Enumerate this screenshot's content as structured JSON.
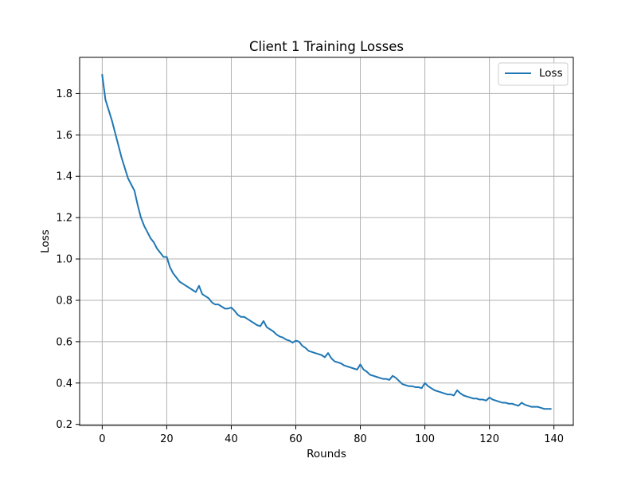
{
  "chart_data": {
    "type": "line",
    "title": "Client 1 Training Losses",
    "xlabel": "Rounds",
    "ylabel": "Loss",
    "xlim": [
      -7,
      146
    ],
    "ylim": [
      0.195,
      1.975
    ],
    "xticks": [
      0,
      20,
      40,
      60,
      80,
      100,
      120,
      140
    ],
    "yticks": [
      0.2,
      0.4,
      0.6,
      0.8,
      1.0,
      1.2,
      1.4,
      1.6,
      1.8
    ],
    "ytick_labels": [
      "0.2",
      "0.4",
      "0.6",
      "0.8",
      "1.0",
      "1.2",
      "1.4",
      "1.6",
      "1.8"
    ],
    "grid": true,
    "legend_position": "top-right",
    "series": [
      {
        "name": "Loss",
        "color": "#1f77b4",
        "y": [
          1.89,
          1.77,
          1.72,
          1.67,
          1.61,
          1.55,
          1.49,
          1.44,
          1.39,
          1.36,
          1.33,
          1.26,
          1.2,
          1.16,
          1.13,
          1.1,
          1.08,
          1.05,
          1.03,
          1.01,
          1.01,
          0.96,
          0.93,
          0.91,
          0.89,
          0.88,
          0.87,
          0.86,
          0.85,
          0.84,
          0.87,
          0.83,
          0.82,
          0.81,
          0.79,
          0.78,
          0.78,
          0.77,
          0.76,
          0.76,
          0.765,
          0.75,
          0.73,
          0.72,
          0.72,
          0.71,
          0.7,
          0.69,
          0.68,
          0.675,
          0.7,
          0.67,
          0.66,
          0.65,
          0.635,
          0.625,
          0.62,
          0.61,
          0.605,
          0.595,
          0.605,
          0.6,
          0.58,
          0.57,
          0.555,
          0.55,
          0.545,
          0.54,
          0.535,
          0.525,
          0.545,
          0.52,
          0.505,
          0.5,
          0.495,
          0.485,
          0.48,
          0.475,
          0.47,
          0.465,
          0.49,
          0.465,
          0.455,
          0.44,
          0.435,
          0.43,
          0.425,
          0.42,
          0.42,
          0.415,
          0.435,
          0.425,
          0.41,
          0.395,
          0.39,
          0.385,
          0.385,
          0.38,
          0.38,
          0.375,
          0.4,
          0.385,
          0.375,
          0.365,
          0.36,
          0.355,
          0.35,
          0.345,
          0.345,
          0.34,
          0.365,
          0.35,
          0.34,
          0.335,
          0.33,
          0.325,
          0.325,
          0.32,
          0.32,
          0.315,
          0.33,
          0.32,
          0.315,
          0.31,
          0.305,
          0.305,
          0.3,
          0.3,
          0.295,
          0.29,
          0.305,
          0.295,
          0.29,
          0.285,
          0.285,
          0.285,
          0.28,
          0.275,
          0.275,
          0.275
        ]
      }
    ]
  }
}
